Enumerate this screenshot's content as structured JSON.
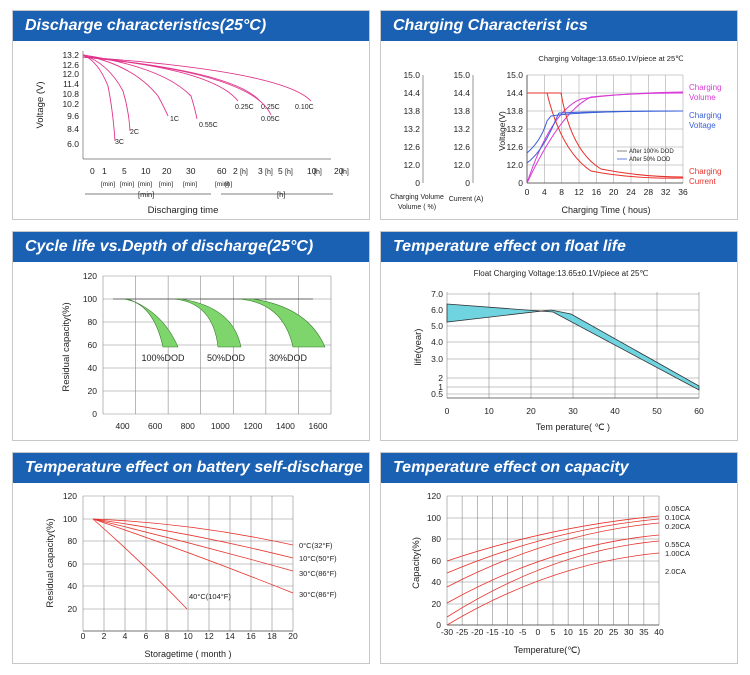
{
  "colors": {
    "header": "#1a60b3",
    "discharge": "#e0348c",
    "charge_volume": "#d83bd8",
    "charge_voltage": "#3a5fd8",
    "charge_current": "#e8312b",
    "float_fill": "#6fd3e0",
    "cycle_fill": "#7dd56b",
    "temp_lines": "#e8312b"
  },
  "panels": {
    "p1": {
      "title": "Discharge characteristics(25°C)"
    },
    "p2": {
      "title": "Charging Characterist ics"
    },
    "p3": {
      "title": "Cycle life vs.Depth of discharge(25°C)"
    },
    "p4": {
      "title": "Temperature effect on float life"
    },
    "p5": {
      "title": "Temperature effect on battery self-discharge"
    },
    "p6": {
      "title": "Temperature effect on capacity"
    }
  },
  "chart_data": [
    {
      "id": "discharge",
      "type": "line",
      "ylabel": "Voltage (V)",
      "xlabel": "Discharging time",
      "yticks": [
        "13.2",
        "12.6",
        "12.0",
        "11.4",
        "10.8",
        "10.2",
        "9.6",
        "8.4",
        "6.0"
      ],
      "xticks_min": [
        "0",
        "1",
        "5",
        "10",
        "20",
        "30",
        "60"
      ],
      "xticks_min_units": [
        "[min]",
        "[min]",
        "[min]",
        "[min]",
        "[min]",
        "[min]"
      ],
      "xticks_h": [
        "2",
        "3",
        "5",
        "10",
        "20"
      ],
      "xticks_h_unit": "[h]",
      "xrange_min": "[min]",
      "xrange_h": "[h]",
      "series": [
        {
          "name": "3C",
          "end_label": "3C"
        },
        {
          "name": "2C",
          "end_label": "2C"
        },
        {
          "name": "1C",
          "end_label": "1C"
        },
        {
          "name": "0.55C",
          "end_label": "0.55C"
        },
        {
          "name": "0.25C",
          "end_label": "0.25C"
        },
        {
          "name": "0.25C",
          "end_label": "0.25C"
        },
        {
          "name": "0.05C",
          "end_label": "0.05C"
        },
        {
          "name": "0.10C",
          "end_label": "0.10C"
        }
      ]
    },
    {
      "id": "charging",
      "type": "line",
      "subtitle": "Charging Voltage:13.65±0.1V/piece at 25℃",
      "xlabel": "Charging Time ( hous)",
      "ylabel": "Voltage(V)",
      "axis1": {
        "label": "Charging Volume ( %)",
        "ticks": [
          "15.0",
          "14.4",
          "13.8",
          "13.2",
          "12.6",
          "12.0",
          "0"
        ]
      },
      "axis2": {
        "label": "Current (A)",
        "ticks": [
          "15.0",
          "14.4",
          "13.8",
          "13.2",
          "12.6",
          "12.0",
          "0"
        ]
      },
      "yticks": [
        "15.0",
        "14.4",
        "13.8",
        "13.2",
        "12.6",
        "12.0",
        "0"
      ],
      "xticks": [
        "0",
        "4",
        "8",
        "12",
        "16",
        "20",
        "24",
        "28",
        "32",
        "36"
      ],
      "legend": [
        "After 100% DOD",
        "After 50% DOD"
      ],
      "side_labels": {
        "volume": [
          "Charging",
          "Volume"
        ],
        "voltage": [
          "Charging",
          "Voltage"
        ],
        "current": [
          "Charging",
          "Current"
        ]
      }
    },
    {
      "id": "cycle_life",
      "type": "area",
      "ylabel": "Residual capacity(%)",
      "yticks": [
        "120",
        "100",
        "80",
        "60",
        "40",
        "20",
        "0"
      ],
      "xticks": [
        "400",
        "600",
        "800",
        "1000",
        "1200",
        "1400",
        "1600"
      ],
      "series": [
        {
          "name": "100%DOD"
        },
        {
          "name": "50%DOD"
        },
        {
          "name": "30%DOD"
        }
      ]
    },
    {
      "id": "float_life",
      "type": "area",
      "subtitle": "Float Charging Voltage:13.65±0.1V/piece at 25℃",
      "ylabel": "life(year)",
      "xlabel": "Tem perature( ℃ )",
      "yticks": [
        "7.0",
        "6.0",
        "5.0",
        "4.0",
        "3.0",
        "2",
        "1",
        "0.5"
      ],
      "xticks": [
        "0",
        "10",
        "20",
        "30",
        "40",
        "50",
        "60"
      ]
    },
    {
      "id": "self_discharge",
      "type": "line",
      "ylabel": "Residual capacity(%)",
      "xlabel": "Storagetime ( month )",
      "yticks": [
        "120",
        "100",
        "80",
        "60",
        "40",
        "20"
      ],
      "xticks": [
        "0",
        "2",
        "4",
        "6",
        "8",
        "10",
        "12",
        "14",
        "16",
        "18",
        "20"
      ],
      "series": [
        {
          "name": "0°C(32°F)"
        },
        {
          "name": "10°C(50°F)"
        },
        {
          "name": "30°C(86°F)"
        },
        {
          "name": "30°C(86°F)"
        },
        {
          "name": "40°C(104°F)"
        }
      ]
    },
    {
      "id": "temp_capacity",
      "type": "line",
      "ylabel": "Capacity(%)",
      "xlabel": "Temperature(℃)",
      "yticks": [
        "120",
        "100",
        "80",
        "60",
        "40",
        "20",
        "0"
      ],
      "xticks": [
        "-30",
        "-25",
        "-20",
        "-15",
        "-10",
        "-5",
        "0",
        "5",
        "10",
        "15",
        "20",
        "25",
        "30",
        "35",
        "40"
      ],
      "series": [
        {
          "name": "0.05CA"
        },
        {
          "name": "0.10CA"
        },
        {
          "name": "0.20CA"
        },
        {
          "name": "0.55CA"
        },
        {
          "name": "1.00CA"
        },
        {
          "name": "2.0CA"
        }
      ]
    }
  ]
}
